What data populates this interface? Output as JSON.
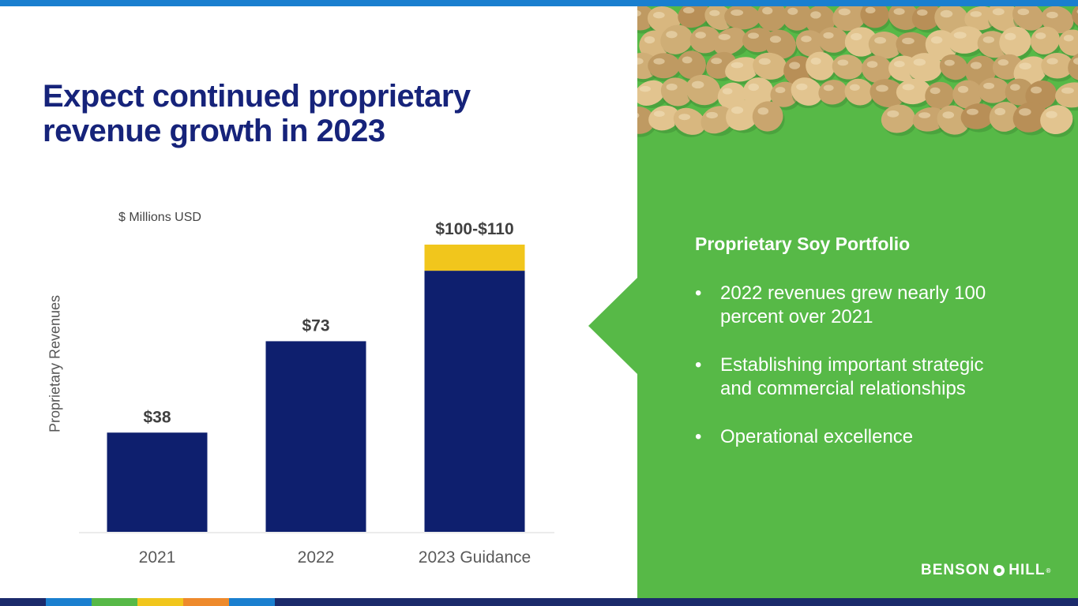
{
  "slide": {
    "title": "Expect continued proprietary revenue growth in 2023",
    "units_label": "$ Millions USD"
  },
  "chart_data": {
    "type": "bar",
    "stacked": true,
    "title": "Expect continued proprietary revenue growth in 2023",
    "ylabel": "Proprietary Revenues",
    "xlabel": "",
    "units": "$ Millions USD",
    "categories": [
      "2021",
      "2022",
      "2023 Guidance"
    ],
    "series": [
      {
        "name": "Revenue",
        "color": "#0e1f6e",
        "values": [
          38,
          73,
          100
        ]
      },
      {
        "name": "Guidance range",
        "color": "#f1c61c",
        "values": [
          0,
          0,
          10
        ]
      }
    ],
    "data_labels": [
      "$38",
      "$73",
      "$100-$110"
    ],
    "ylim": [
      0,
      110
    ],
    "grid": false
  },
  "panel": {
    "title": "Proprietary Soy Portfolio",
    "bullets": [
      "2022 revenues grew nearly 100 percent over 2021",
      "Establishing important strategic and commercial relationships",
      "Operational excellence"
    ],
    "bullet_char": "•",
    "background_color": "#57b947",
    "image_icon": "soybeans-photo"
  },
  "logo": {
    "part1": "BENSON",
    "part2": "HILL",
    "reg": "®"
  },
  "colors": {
    "accent_blue": "#1a7fcf",
    "navy": "#16237a",
    "green": "#57b947",
    "bottom_stripes": [
      "#1b2a6b",
      "#1a7fcf",
      "#57b947",
      "#f1c61c",
      "#ee8a2c",
      "#1a7fcf",
      "#1b2a6b"
    ]
  }
}
